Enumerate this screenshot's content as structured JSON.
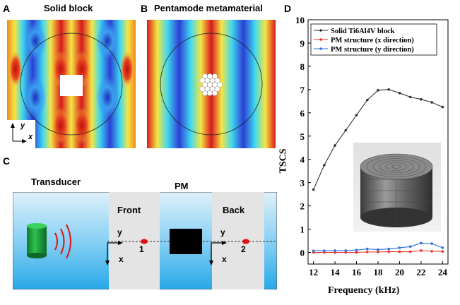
{
  "panels": {
    "a": {
      "letter": "A",
      "title": "Solid block",
      "axis_y": "y",
      "axis_x": "x"
    },
    "b": {
      "letter": "B",
      "title": "Pentamode metamaterial"
    },
    "c": {
      "letter": "C",
      "transducer": "Transducer",
      "pm": "PM",
      "front": "Front",
      "back": "Back",
      "front_y": "y",
      "front_x": "x",
      "back_y": "y",
      "back_x": "x",
      "point1": "1",
      "point2": "2"
    },
    "d": {
      "letter": "D"
    }
  },
  "colors": {
    "field_red": "#d7191c",
    "field_blue": "#2b3fd6",
    "field_cyan": "#3fd9f0",
    "field_yellow": "#f5e642",
    "water_top": "#dff1fb",
    "water_bottom": "#27a8e8",
    "sample_plate": "#e4e4e4",
    "solid_series": "#333333",
    "pm_x_series": "#e8302a",
    "pm_y_series": "#2f6fd8"
  },
  "chart_data": {
    "type": "line",
    "xlabel": "Frequency (kHz)",
    "ylabel": "TSCS",
    "xlim": [
      11.5,
      24.5
    ],
    "ylim": [
      -0.5,
      10
    ],
    "xticks": [
      12,
      14,
      16,
      18,
      20,
      22,
      24
    ],
    "yticks": [
      0,
      1,
      2,
      3,
      4,
      5,
      6,
      7,
      8,
      9,
      10
    ],
    "grid": false,
    "legend": "top-left",
    "x": [
      12,
      13,
      14,
      15,
      16,
      17,
      18,
      19,
      20,
      21,
      22,
      23,
      24
    ],
    "series": [
      {
        "name": "Solid Ti6Al4V block",
        "color": "#333333",
        "values": [
          2.7,
          3.75,
          4.6,
          5.25,
          5.9,
          6.55,
          6.97,
          7.0,
          6.85,
          6.68,
          6.58,
          6.45,
          6.25
        ]
      },
      {
        "name": "PM structure (x direction)",
        "color": "#e8302a",
        "values": [
          0.0,
          0.0,
          0.0,
          0.0,
          0.0,
          0.02,
          0.02,
          0.03,
          0.03,
          0.03,
          0.08,
          0.05,
          0.04
        ]
      },
      {
        "name": "PM structure (y direction)",
        "color": "#2f6fd8",
        "values": [
          0.07,
          0.07,
          0.08,
          0.08,
          0.1,
          0.15,
          0.12,
          0.15,
          0.2,
          0.25,
          0.4,
          0.38,
          0.2
        ]
      }
    ]
  }
}
